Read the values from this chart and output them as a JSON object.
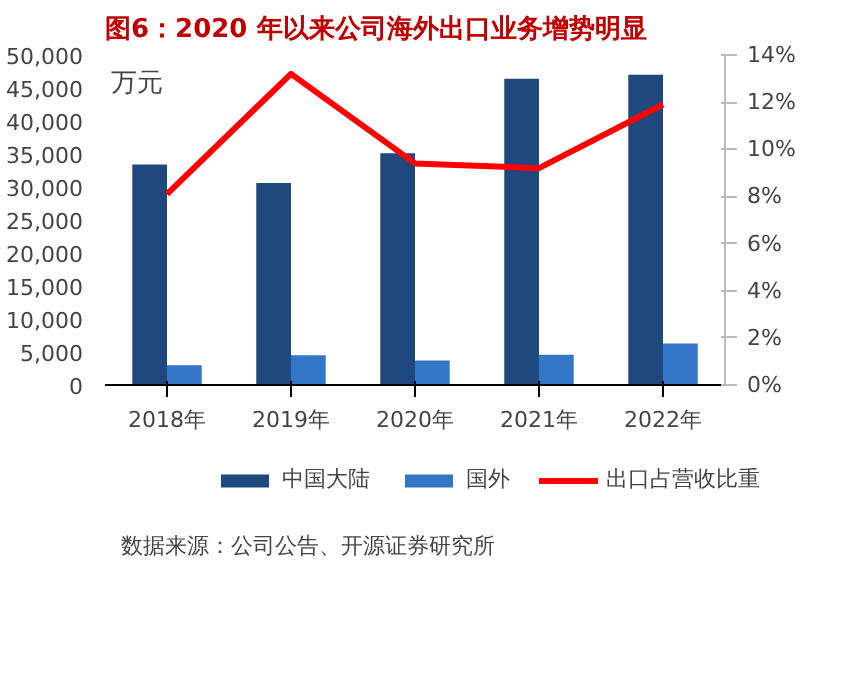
{
  "chart_data": {
    "type": "bar",
    "title": "图6：2020 年以来公司海外出口业务增势明显",
    "ylabel": "万元",
    "categories": [
      "2018年",
      "2019年",
      "2020年",
      "2021年",
      "2022年"
    ],
    "series": [
      {
        "name": "中国大陆",
        "color": "#1f497d",
        "values": [
          33400,
          30600,
          35100,
          46400,
          47000
        ]
      },
      {
        "name": "国外",
        "color": "#3375c6",
        "values": [
          3000,
          4500,
          3700,
          4600,
          6300
        ]
      },
      {
        "name": "出口占营收比重",
        "color": "#ff0000",
        "type": "line",
        "axis": "y2",
        "values": [
          8.1,
          13.2,
          9.4,
          9.2,
          11.9
        ]
      }
    ],
    "ylim": [
      0,
      50000
    ],
    "yticks": [
      {
        "value": 0,
        "label": "0"
      },
      {
        "value": 5000,
        "label": "5,000"
      },
      {
        "value": 10000,
        "label": "10,000"
      },
      {
        "value": 15000,
        "label": "15,000"
      },
      {
        "value": 20000,
        "label": "20,000"
      },
      {
        "value": 25000,
        "label": "25,000"
      },
      {
        "value": 30000,
        "label": "30,000"
      },
      {
        "value": 35000,
        "label": "35,000"
      },
      {
        "value": 40000,
        "label": "40,000"
      },
      {
        "value": 45000,
        "label": "45,000"
      },
      {
        "value": 50000,
        "label": "50,000"
      }
    ],
    "y2lim": [
      0,
      14
    ],
    "y2ticks": [
      {
        "value": 0,
        "label": "0%"
      },
      {
        "value": 2,
        "label": "2%"
      },
      {
        "value": 4,
        "label": "4%"
      },
      {
        "value": 6,
        "label": "6%"
      },
      {
        "value": 8,
        "label": "8%"
      },
      {
        "value": 10,
        "label": "10%"
      },
      {
        "value": 12,
        "label": "12%"
      },
      {
        "value": 14,
        "label": "14%"
      }
    ],
    "legend": "bottom",
    "grid": false,
    "annotations": [
      "数据来源：公司公告、开源证券研究所"
    ]
  }
}
